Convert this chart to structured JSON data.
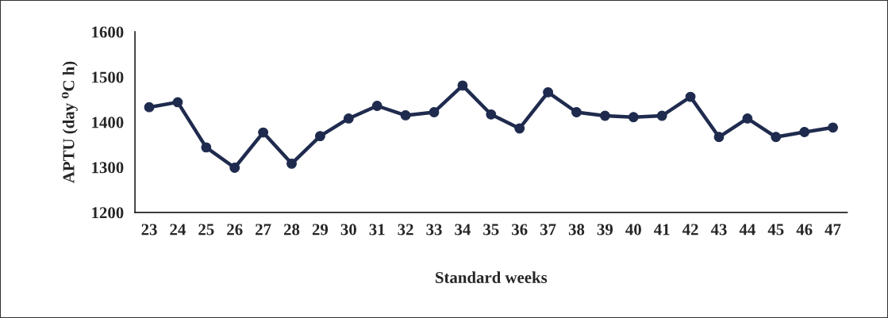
{
  "chart_data": {
    "type": "line",
    "xlabel": "Standard weeks",
    "ylabel": "APTU (day ⁰C h)",
    "categories": [
      "23",
      "24",
      "25",
      "26",
      "27",
      "28",
      "29",
      "30",
      "31",
      "32",
      "33",
      "34",
      "35",
      "36",
      "37",
      "38",
      "39",
      "40",
      "41",
      "42",
      "43",
      "44",
      "45",
      "46",
      "47"
    ],
    "series": [
      {
        "color": "#1f2b4e",
        "values": [
          1433,
          1444,
          1344,
          1299,
          1377,
          1308,
          1369,
          1408,
          1436,
          1415,
          1422,
          1481,
          1417,
          1386,
          1466,
          1422,
          1414,
          1411,
          1414,
          1456,
          1367,
          1408,
          1367,
          1378,
          1388
        ]
      }
    ],
    "ylim": [
      1200,
      1600
    ],
    "yticks": [
      1200,
      1300,
      1400,
      1500,
      1600
    ],
    "grid": false,
    "legend": false,
    "marker": "circle",
    "line_style": "solid"
  }
}
